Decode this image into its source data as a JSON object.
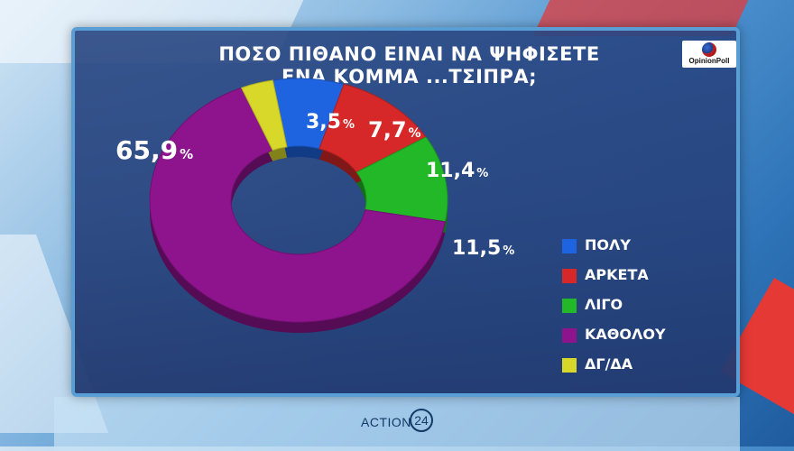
{
  "title_lines": [
    "ΠΟΣΟ ΠΙΘΑΝΟ ΕΙΝΑΙ ΝΑ ΨΗΦΙΣΕΤΕ",
    "ΕΝΑ ΚΟΜΜΑ ...ΤΣΙΠΡΑ;"
  ],
  "logo": {
    "text": "OpinionPoll"
  },
  "brand": {
    "text": "ACTION",
    "number": "24"
  },
  "chart_data": {
    "type": "pie",
    "variant": "donut",
    "title": "ΠΟΣΟ ΠΙΘΑΝΟ ΕΙΝΑΙ ΝΑ ΨΗΦΙΣΕΤΕ ΕΝΑ ΚΟΜΜΑ ...ΤΣΙΠΡΑ;",
    "unit": "%",
    "slices": [
      {
        "label": "ΠΟΛΥ",
        "value": 7.7,
        "display": "7,7",
        "color": "#1e63e0"
      },
      {
        "label": "ΑΡΚΕΤΑ",
        "value": 11.4,
        "display": "11,4",
        "color": "#d62828"
      },
      {
        "label": "ΛΙΓΟ",
        "value": 11.5,
        "display": "11,5",
        "color": "#22b828"
      },
      {
        "label": "ΚΑΘΟΛΟΥ",
        "value": 65.9,
        "display": "65,9",
        "color": "#8e148e"
      },
      {
        "label": "ΔΓ/ΔΑ",
        "value": 3.5,
        "display": "3,5",
        "color": "#d8d82a"
      }
    ],
    "legend_position": "right"
  }
}
